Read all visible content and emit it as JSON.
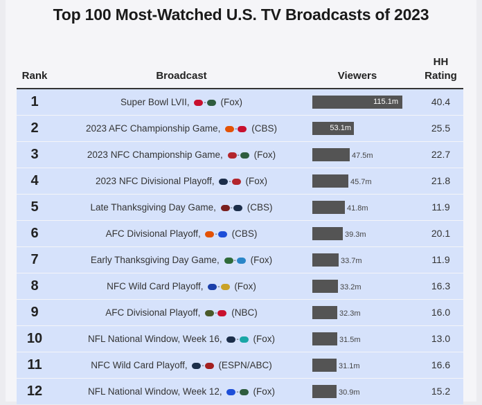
{
  "title": "Top 100 Most-Watched U.S. TV Broadcasts of 2023",
  "headers": {
    "rank": "Rank",
    "broadcast": "Broadcast",
    "viewers": "Viewers",
    "hh_line1": "HH",
    "hh_line2": "Rating"
  },
  "colors": {
    "row_bg": "#d6e2fb",
    "bar": "#545454",
    "panel": "#f5f5f8"
  },
  "chart_data": {
    "type": "bar",
    "title": "Top 100 Most-Watched U.S. TV Broadcasts of 2023",
    "unit": "m",
    "max_value": 115.1,
    "rows": [
      {
        "rank": "1",
        "pre": "Super Bowl LVII,",
        "post": "(Fox)",
        "logos": [
          {
            "name": "chiefs-logo",
            "color": "#c8102e"
          },
          {
            "name": "eagles-logo",
            "color": "#2e5c3e"
          }
        ],
        "value": 115.1,
        "label": "115.1m",
        "hh": "40.4"
      },
      {
        "rank": "2",
        "pre": "2023 AFC Championship Game,",
        "post": "(CBS)",
        "logos": [
          {
            "name": "bengals-logo",
            "color": "#e35205"
          },
          {
            "name": "chiefs-logo",
            "color": "#c8102e"
          }
        ],
        "value": 53.1,
        "label": "53.1m",
        "hh": "25.5"
      },
      {
        "rank": "3",
        "pre": "2023 NFC Championship Game,",
        "post": "(Fox)",
        "logos": [
          {
            "name": "49ers-logo",
            "color": "#b3252c"
          },
          {
            "name": "eagles-logo",
            "color": "#2e5c3e"
          }
        ],
        "value": 47.5,
        "label": "47.5m",
        "hh": "22.7"
      },
      {
        "rank": "4",
        "pre": "2023 NFC Divisional Playoff,",
        "post": "(Fox)",
        "logos": [
          {
            "name": "cowboys-logo",
            "color": "#1c2e4a"
          },
          {
            "name": "49ers-logo",
            "color": "#b3252c"
          }
        ],
        "value": 45.7,
        "label": "45.7m",
        "hh": "21.8"
      },
      {
        "rank": "5",
        "pre": "Late Thanksgiving Day Game,",
        "post": "(CBS)",
        "logos": [
          {
            "name": "commanders-logo",
            "color": "#7a1f1f"
          },
          {
            "name": "cowboys-logo",
            "color": "#1c2e4a"
          }
        ],
        "value": 41.8,
        "label": "41.8m",
        "hh": "11.9"
      },
      {
        "rank": "6",
        "pre": "AFC Divisional Playoff,",
        "post": "(CBS)",
        "logos": [
          {
            "name": "bengals-logo",
            "color": "#e35205"
          },
          {
            "name": "bills-logo",
            "color": "#1d4ed8"
          }
        ],
        "value": 39.3,
        "label": "39.3m",
        "hh": "20.1"
      },
      {
        "rank": "7",
        "pre": "Early Thanksgiving Day Game,",
        "post": "(Fox)",
        "logos": [
          {
            "name": "packers-logo",
            "color": "#2f6b3a"
          },
          {
            "name": "lions-logo",
            "color": "#2a86c8"
          }
        ],
        "value": 33.7,
        "label": "33.7m",
        "hh": "11.9"
      },
      {
        "rank": "8",
        "pre": "NFC Wild Card Playoff,",
        "post": "(Fox)",
        "logos": [
          {
            "name": "giants-logo",
            "color": "#1a3faa"
          },
          {
            "name": "vikings-logo",
            "color": "#c9a227"
          }
        ],
        "value": 33.2,
        "label": "33.2m",
        "hh": "16.3"
      },
      {
        "rank": "9",
        "pre": "AFC Divisional Playoff,",
        "post": "(NBC)",
        "logos": [
          {
            "name": "jaguars-logo",
            "color": "#4a5a2a"
          },
          {
            "name": "chiefs-logo",
            "color": "#c8102e"
          }
        ],
        "value": 32.3,
        "label": "32.3m",
        "hh": "16.0"
      },
      {
        "rank": "10",
        "pre": "NFL National Window, Week 16,",
        "post": "(Fox)",
        "logos": [
          {
            "name": "cowboys-logo",
            "color": "#1c2e4a"
          },
          {
            "name": "dolphins-logo",
            "color": "#1aa6a6"
          }
        ],
        "value": 31.5,
        "label": "31.5m",
        "hh": "13.0"
      },
      {
        "rank": "11",
        "pre": "NFC Wild Card Playoff,",
        "post": "(ESPN/ABC)",
        "logos": [
          {
            "name": "cowboys-logo",
            "color": "#1c2e4a"
          },
          {
            "name": "buccaneers-logo",
            "color": "#a32020"
          }
        ],
        "value": 31.1,
        "label": "31.1m",
        "hh": "16.6"
      },
      {
        "rank": "12",
        "pre": "NFL National Window, Week 12,",
        "post": "(Fox)",
        "logos": [
          {
            "name": "bills-logo",
            "color": "#1d4ed8"
          },
          {
            "name": "eagles-logo",
            "color": "#2e5c3e"
          }
        ],
        "value": 30.9,
        "label": "30.9m",
        "hh": "15.2"
      }
    ]
  }
}
